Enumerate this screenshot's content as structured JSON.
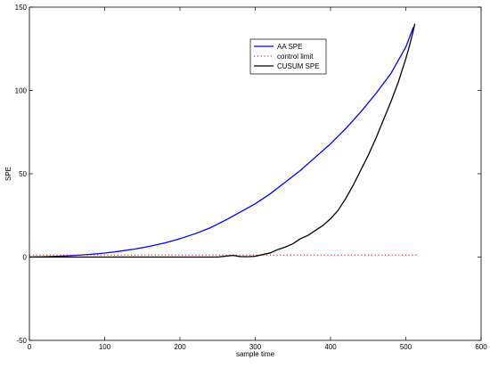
{
  "chart_data": {
    "type": "line",
    "title": "",
    "xlabel": "sample time",
    "ylabel": "SPE",
    "xlim": [
      0,
      600
    ],
    "ylim": [
      -50,
      150
    ],
    "xticks": [
      0,
      100,
      200,
      300,
      400,
      500,
      600
    ],
    "yticks": [
      -50,
      0,
      50,
      100,
      150
    ],
    "grid": false,
    "legend_position": "top-right",
    "series": [
      {
        "name": "AA SPE",
        "color": "#0000ff",
        "style": "solid",
        "x": [
          0,
          20,
          40,
          60,
          80,
          100,
          120,
          140,
          160,
          180,
          200,
          220,
          240,
          260,
          280,
          300,
          320,
          340,
          360,
          380,
          400,
          420,
          440,
          460,
          480,
          500,
          510
        ],
        "y": [
          0,
          0.2,
          0.5,
          1.0,
          1.6,
          2.4,
          3.5,
          4.8,
          6.5,
          8.5,
          11,
          14,
          17.5,
          22,
          27,
          32,
          38,
          45,
          52,
          60,
          68,
          77,
          87,
          98,
          110,
          126,
          138
        ]
      },
      {
        "name": "control limit",
        "color": "#ff0000",
        "style": "dotted",
        "x": [
          0,
          515
        ],
        "y": [
          1.2,
          1.2
        ]
      },
      {
        "name": "CUSUM SPE",
        "color": "#000000",
        "style": "solid",
        "x": [
          0,
          100,
          200,
          250,
          270,
          280,
          290,
          300,
          310,
          320,
          330,
          340,
          350,
          360,
          370,
          380,
          390,
          400,
          410,
          420,
          430,
          440,
          450,
          460,
          470,
          480,
          490,
          500,
          505,
          510,
          512
        ],
        "y": [
          0,
          0,
          0,
          0,
          1.0,
          0.3,
          0.2,
          0.5,
          1.5,
          2.5,
          4.5,
          6,
          8,
          11,
          13,
          16,
          19,
          23,
          28,
          35,
          43,
          52,
          61,
          71,
          82,
          93,
          105,
          119,
          127,
          136,
          140
        ]
      }
    ]
  }
}
